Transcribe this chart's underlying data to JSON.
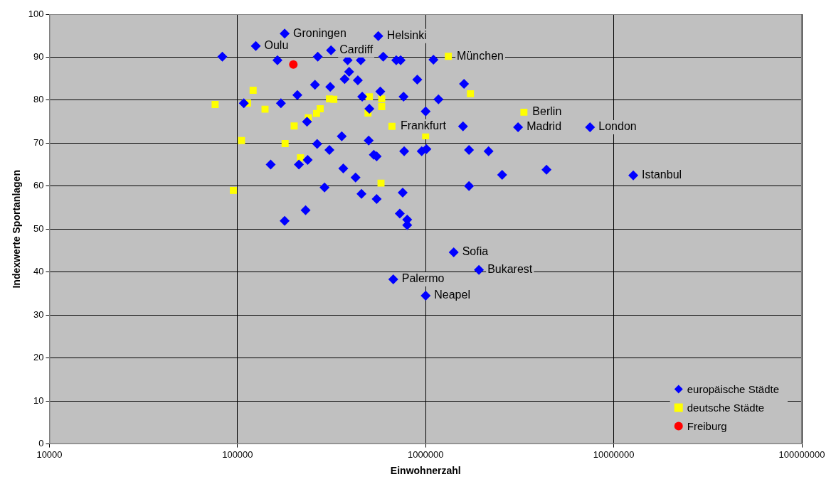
{
  "chart_data": {
    "type": "scatter",
    "xlabel": "Einwohnerzahl",
    "ylabel": "Indexwerte Sportanlagen",
    "log": "x",
    "grid": true,
    "legend": "bottom right",
    "xlim": [
      10000,
      100000000
    ],
    "xticks": [
      10000,
      100000,
      1000000,
      10000000,
      100000000
    ],
    "ylim": [
      0,
      100
    ],
    "yticks": [
      0,
      10,
      20,
      30,
      40,
      50,
      60,
      70,
      80,
      90,
      100
    ],
    "series": [
      {
        "name": "europäische Städte",
        "color": "#0000ff",
        "marker": "diamond",
        "x": [
          83000,
          178000,
          125000,
          314000,
          560000,
          163000,
          267000,
          385000,
          452000,
          595000,
          698000,
          736000,
          1100000,
          392000,
          371000,
          436000,
          903000,
          258000,
          311000,
          208000,
          170000,
          108000,
          460000,
          574000,
          763000,
          502000,
          234000,
          1000000,
          358000,
          498000,
          265000,
          308000,
          769000,
          953000,
          1010000,
          530000,
          549000,
          150000,
          212000,
          236000,
          365000,
          424000,
          290000,
          456000,
          755000,
          549000,
          230000,
          178000,
          729000,
          798000,
          798000,
          1600000,
          1170000,
          1580000,
          1700000,
          2160000,
          2550000,
          4390000,
          1700000,
          3100000,
          7480000,
          12700000,
          1410000,
          1920000,
          673000,
          1000000
        ],
        "values": [
          90.1,
          95.5,
          92.6,
          91.6,
          94.9,
          89.3,
          90.1,
          89.3,
          89.3,
          90.1,
          89.3,
          89.3,
          89.4,
          86.6,
          84.9,
          84.6,
          84.8,
          83.6,
          83.1,
          81.2,
          79.3,
          79.3,
          80.8,
          82,
          80.8,
          78,
          75,
          77.4,
          71.6,
          70.6,
          69.8,
          68.4,
          68.1,
          68.1,
          68.6,
          67.3,
          66.9,
          65,
          65,
          66.1,
          64.1,
          62,
          59.7,
          58.2,
          58.5,
          57,
          54.4,
          51.9,
          53.6,
          52.2,
          50.9,
          83.8,
          80.2,
          73.9,
          68.4,
          68.1,
          62.6,
          63.8,
          60,
          73.7,
          73.7,
          62.5,
          44.6,
          40.5,
          38.3,
          34.5
        ]
      },
      {
        "name": "deutsche Städte",
        "color": "#ffff00",
        "marker": "square",
        "x": [
          76000,
          121000,
          113000,
          140000,
          200000,
          105000,
          179000,
          216000,
          95000,
          238000,
          263000,
          275000,
          308000,
          325000,
          502000,
          584000,
          584000,
          494000,
          662000,
          1000000,
          579000,
          1320000,
          1730000,
          3330000
        ],
        "values": [
          79,
          82.3,
          79.3,
          77.9,
          74,
          70.6,
          69.9,
          66.6,
          59,
          75.9,
          76.9,
          78,
          80.3,
          80.2,
          80.8,
          80.3,
          78.5,
          77,
          73.9,
          71.7,
          60.7,
          90.2,
          81.5,
          77.2
        ]
      },
      {
        "name": "Freiburg",
        "color": "#ff0000",
        "marker": "circle",
        "x": [
          198000
        ],
        "values": [
          88.3
        ]
      }
    ],
    "annotations": [
      {
        "text": "Groningen",
        "x": 178000,
        "y": 95.5
      },
      {
        "text": "Oulu",
        "x": 125000,
        "y": 92.6
      },
      {
        "text": "Cardiff",
        "x": 314000,
        "y": 91.6
      },
      {
        "text": "Helsinki",
        "x": 560000,
        "y": 94.9
      },
      {
        "text": "München",
        "x": 1320000,
        "y": 90.2
      },
      {
        "text": "Berlin",
        "x": 3330000,
        "y": 77.2
      },
      {
        "text": "Frankfurt",
        "x": 662000,
        "y": 73.9
      },
      {
        "text": "Madrid",
        "x": 3100000,
        "y": 73.7
      },
      {
        "text": "London",
        "x": 7480000,
        "y": 73.7
      },
      {
        "text": "Istanbul",
        "x": 12700000,
        "y": 62.5
      },
      {
        "text": "Sofia",
        "x": 1410000,
        "y": 44.6
      },
      {
        "text": "Bukarest",
        "x": 1920000,
        "y": 40.5
      },
      {
        "text": "Palermo",
        "x": 673000,
        "y": 38.3
      },
      {
        "text": "Neapel",
        "x": 1000000,
        "y": 34.5
      }
    ]
  }
}
